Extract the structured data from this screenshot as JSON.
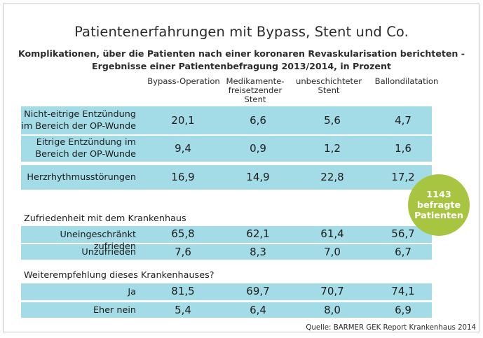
{
  "chart_data": {
    "type": "table",
    "title": "Patientenerfahrungen mit Bypass, Stent und Co.",
    "subtitle_line1": "Komplikationen, über die Patienten nach einer koronaren Revaskularisation berichteten -",
    "subtitle_line2": "Ergebnisse einer Patientenbefragung 2013/2014, in Prozent",
    "columns": [
      [
        "Bypass-Operation"
      ],
      [
        "Medikamente-",
        "freisetzender",
        "Stent"
      ],
      [
        "unbeschichteter",
        "Stent"
      ],
      [
        "Ballondilatation"
      ]
    ],
    "rows": [
      {
        "label": [
          "Nicht-eitrige Entzündung",
          "im Bereich der OP-Wunde"
        ],
        "values": [
          "20,1",
          "6,6",
          "5,6",
          "4,7"
        ]
      },
      {
        "label": [
          "Eitrige Entzündung im",
          "Bereich der OP-Wunde"
        ],
        "values": [
          "9,4",
          "0,9",
          "1,2",
          "1,6"
        ]
      },
      {
        "label": [
          "Herzrhythmusstörungen"
        ],
        "values": [
          "16,9",
          "14,9",
          "22,8",
          "17,2"
        ]
      },
      {
        "label": [
          "Uneingeschränkt zufrieden"
        ],
        "values": [
          "65,8",
          "62,1",
          "61,4",
          "56,7"
        ]
      },
      {
        "label": [
          "Unzufrieden"
        ],
        "values": [
          "7,6",
          "8,3",
          "7,0",
          "6,7"
        ]
      },
      {
        "label": [
          "Ja"
        ],
        "values": [
          "81,5",
          "69,7",
          "70,7",
          "74,1"
        ]
      },
      {
        "label": [
          "Eher nein"
        ],
        "values": [
          "5,4",
          "6,4",
          "8,0",
          "6,9"
        ]
      }
    ],
    "sections": [
      "Zufriedenheit mit dem Krankenhaus",
      "Weiterempfehlung dieses Krankenhauses?"
    ],
    "badge": [
      "1143",
      "befragte",
      "Patienten"
    ],
    "source": "Quelle: BARMER GEK Report Krankenhaus 2014"
  },
  "colors": {
    "band": "#a3dbe6",
    "badge": "#a7c540",
    "text": "#1d1d1b"
  }
}
